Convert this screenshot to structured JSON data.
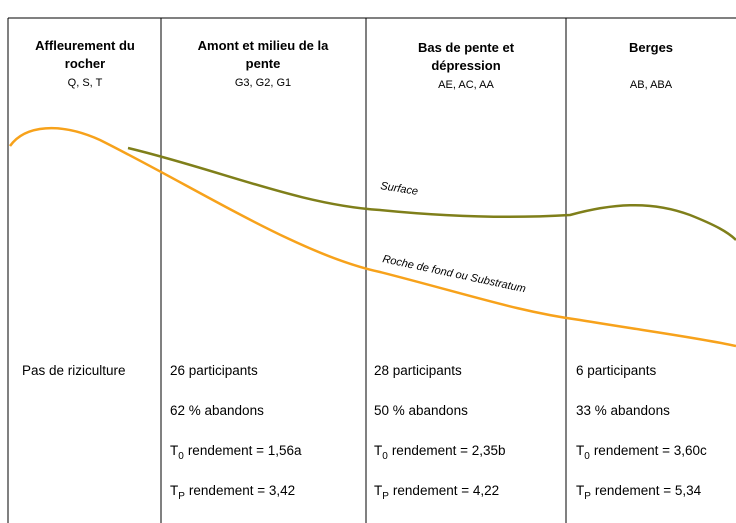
{
  "columns": [
    {
      "title": [
        "Affleurement du",
        "rocher"
      ],
      "subtitle": "Q, S, T",
      "note": "Pas de riziculture"
    },
    {
      "title": [
        "Amont et milieu de la",
        "pente"
      ],
      "subtitle": "G3, G2, G1",
      "participants": "26 participants",
      "abandons": "62 % abandons",
      "t0": {
        "symbol": "T",
        "sub": "0",
        "text": "rendement = 1,56a"
      },
      "tp": {
        "symbol": "T",
        "sub": "P",
        "text": "rendement = 3,42"
      }
    },
    {
      "title": [
        "Bas de pente et",
        "dépression"
      ],
      "subtitle": "AE, AC, AA",
      "participants": "28 participants",
      "abandons": "50 % abandons",
      "t0": {
        "symbol": "T",
        "sub": "0",
        "text": "rendement = 2,35b"
      },
      "tp": {
        "symbol": "T",
        "sub": "P",
        "text": "rendement = 4,22"
      }
    },
    {
      "title": [
        "Berges"
      ],
      "subtitle": "AB, ABA",
      "participants": "6 participants",
      "abandons": "33 % abandons",
      "t0": {
        "symbol": "T",
        "sub": "0",
        "text": "rendement = 3,60c"
      },
      "tp": {
        "symbol": "T",
        "sub": "P",
        "text": "rendement = 5,34"
      }
    }
  ],
  "curves": {
    "surface": "Surface",
    "bedrock": "Roche de fond ou Substratum"
  }
}
